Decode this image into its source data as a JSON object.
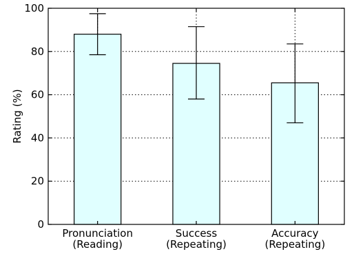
{
  "chart_data": {
    "type": "bar",
    "categories": [
      [
        "Pronunciation",
        "(Reading)"
      ],
      [
        "Success",
        "(Repeating)"
      ],
      [
        "Accuracy",
        "(Repeating)"
      ]
    ],
    "values": [
      88,
      74.5,
      65.5
    ],
    "error_bars": [
      {
        "low": 78.5,
        "high": 97.5
      },
      {
        "low": 58,
        "high": 91.5
      },
      {
        "low": 47,
        "high": 83.5
      }
    ],
    "xlabel": "",
    "ylabel": "Rating (%)",
    "ylim": [
      0,
      100
    ],
    "yticks": [
      0,
      20,
      40,
      60,
      80,
      100
    ],
    "grid": true,
    "grid_style": "dotted",
    "colors": {
      "bar_fill": "#e0ffff",
      "edge": "#000000"
    }
  }
}
